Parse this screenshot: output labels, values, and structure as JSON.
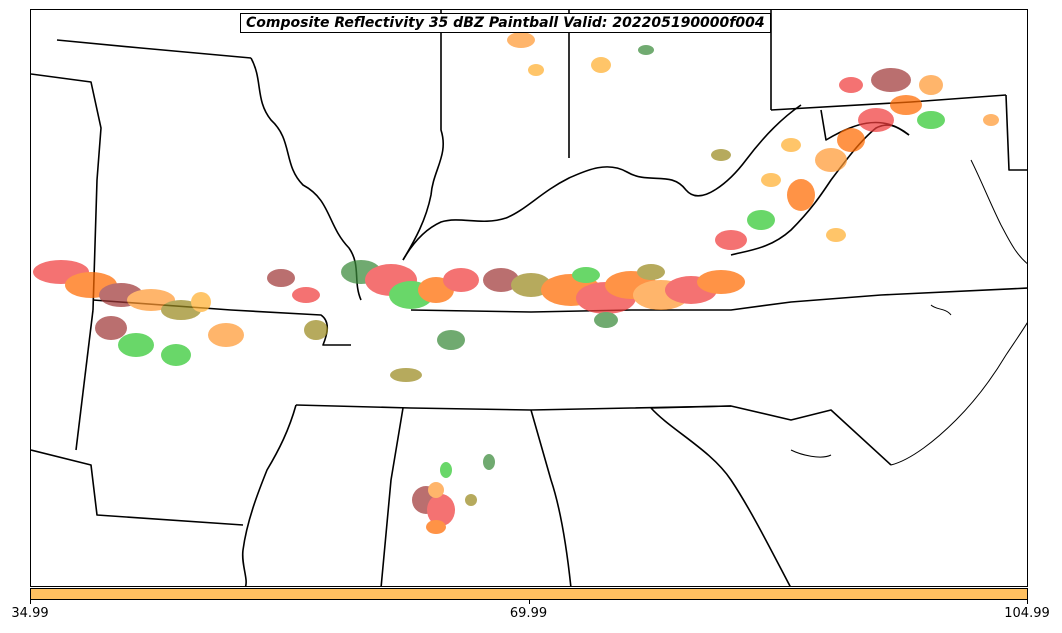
{
  "title": "Composite Reflectivity 35 dBZ Paintball Valid: 202205190000f004",
  "colorbar": {
    "color": "#ffc060",
    "ticks": [
      {
        "value": 34.99,
        "label": "34.99"
      },
      {
        "value": 69.99,
        "label": "69.99"
      },
      {
        "value": 104.99,
        "label": "104.99"
      }
    ],
    "range": [
      34.99,
      104.99
    ]
  },
  "member_colors": [
    "#f03c3c",
    "#ff6a00",
    "#ff9933",
    "#30c830",
    "#3a8a3a",
    "#9a8a20",
    "#a03838",
    "#ffb030"
  ]
}
